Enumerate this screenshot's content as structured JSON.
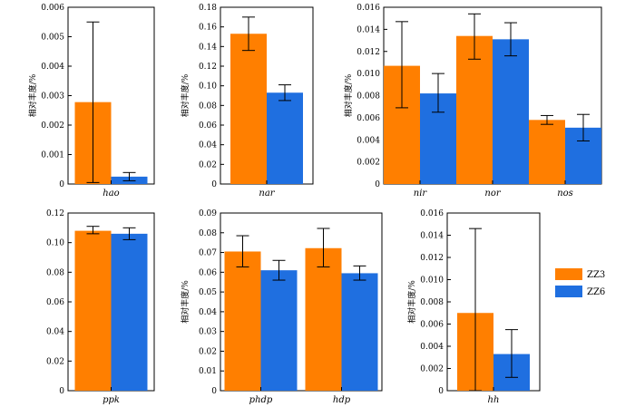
{
  "chart_data": {
    "type": "bar",
    "legend": {
      "placement": "right",
      "entries": [
        {
          "name": "ZZ3",
          "color": "#ff7f00"
        },
        {
          "name": "ZZ6",
          "color": "#1f6fe0"
        }
      ]
    },
    "panels": [
      {
        "id": "hao",
        "ylabel": "相对丰度/%",
        "ylim": [
          0,
          0.006
        ],
        "yticks": [
          "0",
          "0.001",
          "0.002",
          "0.003",
          "0.004",
          "0.005",
          "0.006"
        ],
        "categories": [
          "hao"
        ],
        "series": [
          {
            "name": "ZZ3",
            "values": [
              0.00278
            ],
            "err_low": [
              5e-05
            ],
            "err_high": [
              0.0055
            ]
          },
          {
            "name": "ZZ6",
            "values": [
              0.00025
            ],
            "err_low": [
              0.00011
            ],
            "err_high": [
              0.00039
            ]
          }
        ]
      },
      {
        "id": "nar",
        "ylabel": "相对丰度/%",
        "ylim": [
          0,
          0.18
        ],
        "yticks": [
          "0",
          "0.02",
          "0.04",
          "0.06",
          "0.08",
          "0.10",
          "0.12",
          "0.14",
          "0.16",
          "0.18"
        ],
        "categories": [
          "nar"
        ],
        "series": [
          {
            "name": "ZZ3",
            "values": [
              0.153
            ],
            "err_low": [
              0.136
            ],
            "err_high": [
              0.17
            ]
          },
          {
            "name": "ZZ6",
            "values": [
              0.093
            ],
            "err_low": [
              0.085
            ],
            "err_high": [
              0.101
            ]
          }
        ]
      },
      {
        "id": "nir-nor-nos",
        "ylabel": "相对丰度/%",
        "ylim": [
          0,
          0.016
        ],
        "yticks": [
          "0",
          "0.002",
          "0.004",
          "0.006",
          "0.008",
          "0.010",
          "0.012",
          "0.014",
          "0.016"
        ],
        "categories": [
          "nir",
          "nor",
          "nos"
        ],
        "series": [
          {
            "name": "ZZ3",
            "values": [
              0.0107,
              0.0134,
              0.0058
            ],
            "err_low": [
              0.0069,
              0.0113,
              0.0054
            ],
            "err_high": [
              0.0147,
              0.0154,
              0.0062
            ]
          },
          {
            "name": "ZZ6",
            "values": [
              0.0082,
              0.0131,
              0.0051
            ],
            "err_low": [
              0.0065,
              0.0116,
              0.0039
            ],
            "err_high": [
              0.01,
              0.0146,
              0.0063
            ]
          }
        ]
      },
      {
        "id": "ppk",
        "ylabel": "",
        "ylim": [
          0,
          0.12
        ],
        "yticks": [
          "0",
          "0.02",
          "0.04",
          "0.06",
          "0.08",
          "0.10",
          "0.12"
        ],
        "categories": [
          "ppk"
        ],
        "series": [
          {
            "name": "ZZ3",
            "values": [
              0.108
            ],
            "err_low": [
              0.106
            ],
            "err_high": [
              0.111
            ]
          },
          {
            "name": "ZZ6",
            "values": [
              0.106
            ],
            "err_low": [
              0.102
            ],
            "err_high": [
              0.11
            ]
          }
        ]
      },
      {
        "id": "phdp-hdp",
        "ylabel": "相对丰度/%",
        "ylim": [
          0,
          0.09
        ],
        "yticks": [
          "0",
          "0.01",
          "0.02",
          "0.03",
          "0.04",
          "0.05",
          "0.06",
          "0.07",
          "0.08",
          "0.09"
        ],
        "categories": [
          "phdp",
          "hdp"
        ],
        "series": [
          {
            "name": "ZZ3",
            "values": [
              0.0705,
              0.0722
            ],
            "err_low": [
              0.0627,
              0.0627
            ],
            "err_high": [
              0.0785,
              0.0822
            ]
          },
          {
            "name": "ZZ6",
            "values": [
              0.061,
              0.0595
            ],
            "err_low": [
              0.056,
              0.056
            ],
            "err_high": [
              0.066,
              0.0632
            ]
          }
        ]
      },
      {
        "id": "hh",
        "ylabel": "相对丰度/%",
        "ylim": [
          0,
          0.016
        ],
        "yticks": [
          "0",
          "0.002",
          "0.004",
          "0.006",
          "0.008",
          "0.010",
          "0.012",
          "0.014",
          "0.016"
        ],
        "categories": [
          "hh"
        ],
        "series": [
          {
            "name": "ZZ3",
            "values": [
              0.007
            ],
            "err_low": [
              0.0
            ],
            "err_high": [
              0.0146
            ]
          },
          {
            "name": "ZZ6",
            "values": [
              0.0033
            ],
            "err_low": [
              0.0012
            ],
            "err_high": [
              0.0055
            ]
          }
        ]
      }
    ]
  }
}
